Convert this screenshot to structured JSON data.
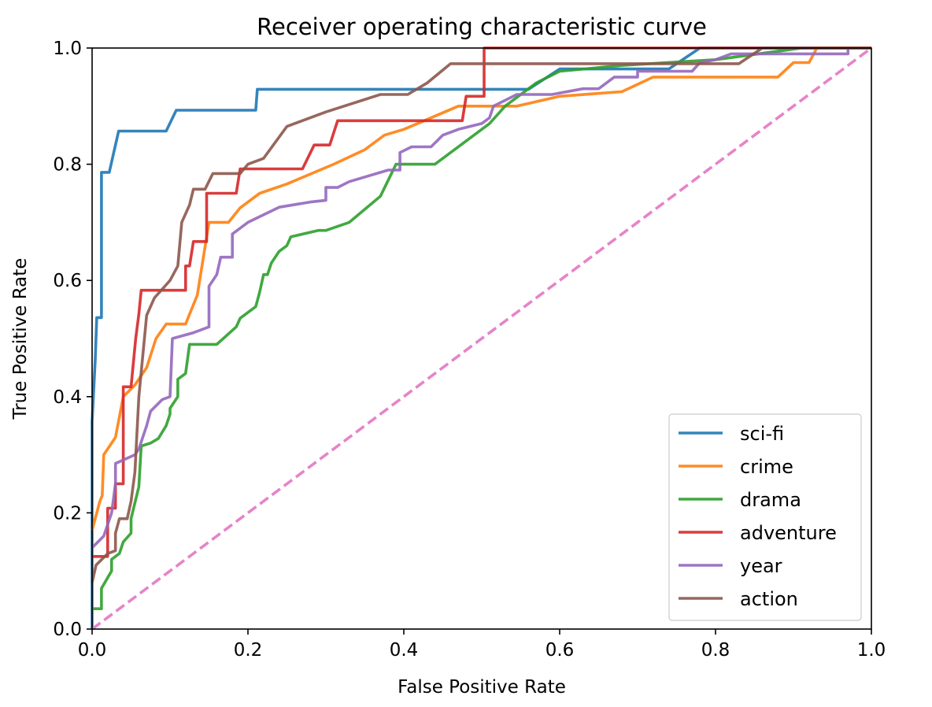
{
  "chart_data": {
    "type": "line",
    "title": "Receiver operating characteristic curve",
    "xlabel": "False Positive Rate",
    "ylabel": "True Positive Rate",
    "xlim": [
      0.0,
      1.0
    ],
    "ylim": [
      0.0,
      1.0
    ],
    "x_ticks": [
      "0.0",
      "0.2",
      "0.4",
      "0.6",
      "0.8",
      "1.0"
    ],
    "y_ticks": [
      "0.0",
      "0.2",
      "0.4",
      "0.6",
      "0.8",
      "1.0"
    ],
    "grid": false,
    "legend_position": "lower right",
    "series": [
      {
        "name": "sci-fi",
        "color": "#1f77b4",
        "points": [
          [
            0,
            0
          ],
          [
            0,
            0.357
          ],
          [
            0.004,
            0.464
          ],
          [
            0.006,
            0.536
          ],
          [
            0.012,
            0.536
          ],
          [
            0.012,
            0.786
          ],
          [
            0.022,
            0.786
          ],
          [
            0.034,
            0.857
          ],
          [
            0.095,
            0.857
          ],
          [
            0.108,
            0.893
          ],
          [
            0.21,
            0.893
          ],
          [
            0.212,
            0.929
          ],
          [
            0.56,
            0.929
          ],
          [
            0.6,
            0.964
          ],
          [
            0.74,
            0.964
          ],
          [
            0.78,
            1.0
          ],
          [
            1.0,
            1.0
          ]
        ]
      },
      {
        "name": "crime",
        "color": "#ff7f0e",
        "points": [
          [
            0,
            0.17
          ],
          [
            0.01,
            0.22
          ],
          [
            0.013,
            0.23
          ],
          [
            0.015,
            0.3
          ],
          [
            0.03,
            0.33
          ],
          [
            0.04,
            0.4
          ],
          [
            0.055,
            0.42
          ],
          [
            0.07,
            0.45
          ],
          [
            0.082,
            0.5
          ],
          [
            0.095,
            0.525
          ],
          [
            0.12,
            0.525
          ],
          [
            0.135,
            0.575
          ],
          [
            0.15,
            0.7
          ],
          [
            0.175,
            0.7
          ],
          [
            0.19,
            0.725
          ],
          [
            0.215,
            0.75
          ],
          [
            0.25,
            0.766
          ],
          [
            0.31,
            0.8
          ],
          [
            0.35,
            0.825
          ],
          [
            0.375,
            0.85
          ],
          [
            0.4,
            0.86
          ],
          [
            0.47,
            0.9
          ],
          [
            0.5,
            0.9
          ],
          [
            0.545,
            0.9
          ],
          [
            0.6,
            0.917
          ],
          [
            0.68,
            0.925
          ],
          [
            0.72,
            0.95
          ],
          [
            0.88,
            0.95
          ],
          [
            0.9,
            0.975
          ],
          [
            0.92,
            0.975
          ],
          [
            0.93,
            1.0
          ],
          [
            1.0,
            1.0
          ]
        ]
      },
      {
        "name": "drama",
        "color": "#2ca02c",
        "points": [
          [
            0,
            0.035
          ],
          [
            0.012,
            0.035
          ],
          [
            0.012,
            0.07
          ],
          [
            0.025,
            0.1
          ],
          [
            0.025,
            0.12
          ],
          [
            0.035,
            0.13
          ],
          [
            0.04,
            0.15
          ],
          [
            0.05,
            0.165
          ],
          [
            0.05,
            0.19
          ],
          [
            0.06,
            0.245
          ],
          [
            0.063,
            0.315
          ],
          [
            0.075,
            0.32
          ],
          [
            0.085,
            0.328
          ],
          [
            0.095,
            0.35
          ],
          [
            0.1,
            0.37
          ],
          [
            0.1,
            0.38
          ],
          [
            0.11,
            0.4
          ],
          [
            0.11,
            0.43
          ],
          [
            0.12,
            0.44
          ],
          [
            0.125,
            0.49
          ],
          [
            0.16,
            0.49
          ],
          [
            0.185,
            0.52
          ],
          [
            0.19,
            0.535
          ],
          [
            0.21,
            0.555
          ],
          [
            0.215,
            0.58
          ],
          [
            0.22,
            0.61
          ],
          [
            0.225,
            0.61
          ],
          [
            0.23,
            0.63
          ],
          [
            0.24,
            0.65
          ],
          [
            0.25,
            0.66
          ],
          [
            0.255,
            0.675
          ],
          [
            0.29,
            0.686
          ],
          [
            0.3,
            0.686
          ],
          [
            0.33,
            0.7
          ],
          [
            0.37,
            0.745
          ],
          [
            0.39,
            0.8
          ],
          [
            0.44,
            0.8
          ],
          [
            0.51,
            0.87
          ],
          [
            0.53,
            0.9
          ],
          [
            0.57,
            0.94
          ],
          [
            0.6,
            0.96
          ],
          [
            0.68,
            0.97
          ],
          [
            0.8,
            0.98
          ],
          [
            0.91,
            1.0
          ]
        ]
      },
      {
        "name": "adventure",
        "color": "#d62728",
        "points": [
          [
            0,
            0.125
          ],
          [
            0.02,
            0.125
          ],
          [
            0.02,
            0.208
          ],
          [
            0.03,
            0.208
          ],
          [
            0.03,
            0.25
          ],
          [
            0.04,
            0.25
          ],
          [
            0.04,
            0.417
          ],
          [
            0.05,
            0.417
          ],
          [
            0.056,
            0.5
          ],
          [
            0.06,
            0.542
          ],
          [
            0.063,
            0.583
          ],
          [
            0.12,
            0.583
          ],
          [
            0.12,
            0.625
          ],
          [
            0.125,
            0.625
          ],
          [
            0.13,
            0.667
          ],
          [
            0.147,
            0.667
          ],
          [
            0.147,
            0.75
          ],
          [
            0.185,
            0.75
          ],
          [
            0.19,
            0.792
          ],
          [
            0.27,
            0.792
          ],
          [
            0.285,
            0.833
          ],
          [
            0.305,
            0.833
          ],
          [
            0.315,
            0.875
          ],
          [
            0.43,
            0.875
          ],
          [
            0.475,
            0.875
          ],
          [
            0.48,
            0.917
          ],
          [
            0.503,
            0.917
          ],
          [
            0.503,
            1.0
          ],
          [
            1.0,
            1.0
          ]
        ]
      },
      {
        "name": "year",
        "color": "#9467bd",
        "points": [
          [
            0,
            0.14
          ],
          [
            0.015,
            0.16
          ],
          [
            0.025,
            0.2
          ],
          [
            0.03,
            0.25
          ],
          [
            0.03,
            0.285
          ],
          [
            0.055,
            0.3
          ],
          [
            0.06,
            0.31
          ],
          [
            0.07,
            0.35
          ],
          [
            0.075,
            0.375
          ],
          [
            0.09,
            0.395
          ],
          [
            0.1,
            0.4
          ],
          [
            0.103,
            0.5
          ],
          [
            0.13,
            0.51
          ],
          [
            0.15,
            0.52
          ],
          [
            0.15,
            0.59
          ],
          [
            0.16,
            0.61
          ],
          [
            0.165,
            0.64
          ],
          [
            0.18,
            0.64
          ],
          [
            0.18,
            0.68
          ],
          [
            0.19,
            0.69
          ],
          [
            0.2,
            0.7
          ],
          [
            0.24,
            0.726
          ],
          [
            0.28,
            0.735
          ],
          [
            0.3,
            0.738
          ],
          [
            0.3,
            0.76
          ],
          [
            0.315,
            0.76
          ],
          [
            0.33,
            0.77
          ],
          [
            0.38,
            0.79
          ],
          [
            0.395,
            0.79
          ],
          [
            0.395,
            0.82
          ],
          [
            0.41,
            0.83
          ],
          [
            0.435,
            0.83
          ],
          [
            0.45,
            0.85
          ],
          [
            0.47,
            0.86
          ],
          [
            0.5,
            0.87
          ],
          [
            0.51,
            0.88
          ],
          [
            0.515,
            0.9
          ],
          [
            0.545,
            0.92
          ],
          [
            0.59,
            0.92
          ],
          [
            0.63,
            0.93
          ],
          [
            0.65,
            0.93
          ],
          [
            0.67,
            0.95
          ],
          [
            0.7,
            0.95
          ],
          [
            0.7,
            0.96
          ],
          [
            0.77,
            0.96
          ],
          [
            0.78,
            0.975
          ],
          [
            0.8,
            0.98
          ],
          [
            0.82,
            0.99
          ],
          [
            0.97,
            0.99
          ],
          [
            0.97,
            1.0
          ]
        ]
      },
      {
        "name": "action",
        "color": "#8c564b",
        "points": [
          [
            0,
            0.08
          ],
          [
            0.005,
            0.11
          ],
          [
            0.02,
            0.13
          ],
          [
            0.03,
            0.135
          ],
          [
            0.03,
            0.165
          ],
          [
            0.035,
            0.19
          ],
          [
            0.045,
            0.19
          ],
          [
            0.05,
            0.22
          ],
          [
            0.055,
            0.27
          ],
          [
            0.06,
            0.4
          ],
          [
            0.07,
            0.54
          ],
          [
            0.08,
            0.57
          ],
          [
            0.09,
            0.585
          ],
          [
            0.1,
            0.6
          ],
          [
            0.11,
            0.625
          ],
          [
            0.115,
            0.7
          ],
          [
            0.125,
            0.73
          ],
          [
            0.13,
            0.757
          ],
          [
            0.145,
            0.757
          ],
          [
            0.155,
            0.784
          ],
          [
            0.19,
            0.784
          ],
          [
            0.2,
            0.8
          ],
          [
            0.22,
            0.81
          ],
          [
            0.25,
            0.865
          ],
          [
            0.3,
            0.89
          ],
          [
            0.37,
            0.92
          ],
          [
            0.405,
            0.92
          ],
          [
            0.43,
            0.94
          ],
          [
            0.46,
            0.973
          ],
          [
            0.83,
            0.973
          ],
          [
            0.86,
            1.0
          ],
          [
            1.0,
            1.0
          ]
        ]
      },
      {
        "name": "",
        "color": "#e377c2",
        "dashed": true,
        "points": [
          [
            0,
            0
          ],
          [
            1,
            1
          ]
        ]
      }
    ]
  }
}
